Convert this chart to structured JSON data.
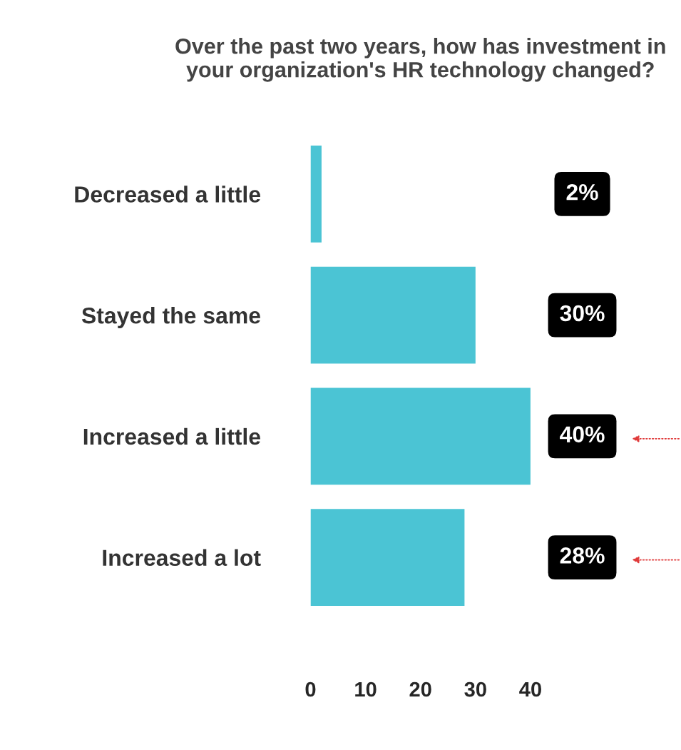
{
  "chart_data": {
    "type": "bar",
    "orientation": "horizontal",
    "title": "Over the past two years, how has investment in your organization's HR technology changed?",
    "categories": [
      "Decreased a little",
      "Stayed the same",
      "Increased a little",
      "Increased a lot"
    ],
    "values": [
      2,
      30,
      40,
      28
    ],
    "value_labels": [
      "2%",
      "30%",
      "40%",
      "28%"
    ],
    "color": "#4bc4d4",
    "xlim": [
      0,
      40
    ],
    "xticks": [
      0,
      10,
      20,
      30,
      40
    ],
    "grid": false,
    "legend": false
  }
}
